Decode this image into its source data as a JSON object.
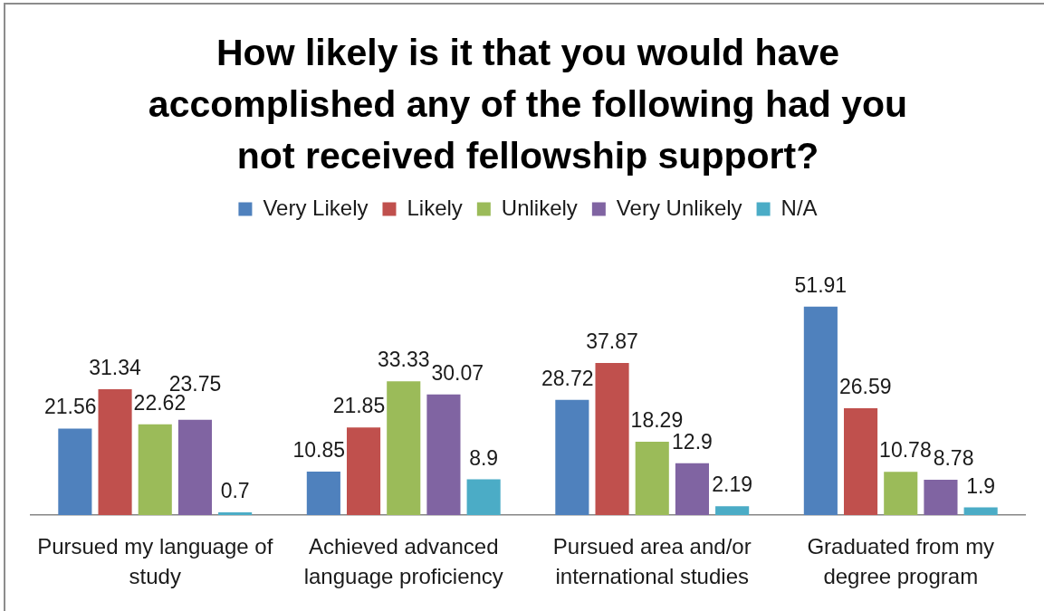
{
  "chart_data": {
    "type": "bar",
    "title": "How likely is it that you would have accomplished any of the following had you not received fellowship support?",
    "categories": [
      "Pursued my language of study",
      "Achieved advanced language proficiency",
      "Pursued area and/or international studies",
      "Graduated from my degree program"
    ],
    "series": [
      {
        "name": "Very Likely",
        "color": "#4f81bd",
        "values": [
          21.56,
          10.85,
          28.72,
          51.91
        ]
      },
      {
        "name": "Likely",
        "color": "#c0504d",
        "values": [
          31.34,
          21.85,
          37.87,
          26.59
        ]
      },
      {
        "name": "Unlikely",
        "color": "#9bbb59",
        "values": [
          22.62,
          33.33,
          18.29,
          10.78
        ]
      },
      {
        "name": "Very Unlikely",
        "color": "#8064a2",
        "values": [
          23.75,
          30.07,
          12.9,
          8.78
        ]
      },
      {
        "name": "N/A",
        "color": "#4bacc6",
        "values": [
          0.7,
          8.9,
          2.19,
          1.9
        ]
      }
    ],
    "data_labels": true,
    "legend": "top",
    "grid": false,
    "tick_labels": "x"
  }
}
